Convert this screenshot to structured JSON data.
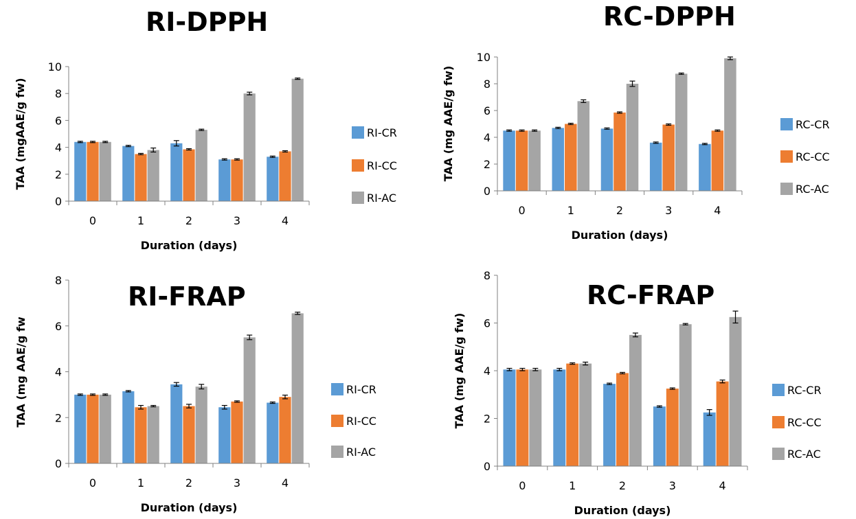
{
  "chart_data": [
    {
      "type": "bar",
      "title": "RI-DPPH",
      "xlabel": "Duration (days)",
      "ylabel": "TAA (mgAAE/g fw)",
      "ylim": [
        0,
        10
      ],
      "yticks": [
        "0",
        "2",
        "4",
        "6",
        "8",
        "10"
      ],
      "categories": [
        "0",
        "1",
        "2",
        "3",
        "4"
      ],
      "legend_position": "right",
      "grid": false,
      "series": [
        {
          "name": "RI-CR",
          "color": "#5b9bd5",
          "values": [
            4.4,
            4.1,
            4.3,
            3.1,
            3.3
          ],
          "errors": [
            0.05,
            0.05,
            0.2,
            0.05,
            0.05
          ]
        },
        {
          "name": "RI-CC",
          "color": "#ed7d31",
          "values": [
            4.4,
            3.5,
            3.85,
            3.1,
            3.7
          ],
          "errors": [
            0.05,
            0.05,
            0.05,
            0.05,
            0.05
          ]
        },
        {
          "name": "RI-AC",
          "color": "#a5a5a5",
          "values": [
            4.4,
            3.8,
            5.3,
            8.0,
            9.1
          ],
          "errors": [
            0.05,
            0.15,
            0.05,
            0.1,
            0.05
          ]
        }
      ]
    },
    {
      "type": "bar",
      "title": "RC-DPPH",
      "xlabel": "Duration (days)",
      "ylabel": "TAA (mg AAE/g fw)",
      "ylim": [
        0,
        10
      ],
      "yticks": [
        "0",
        "2",
        "4",
        "6",
        "8",
        "10"
      ],
      "categories": [
        "0",
        "1",
        "2",
        "3",
        "4"
      ],
      "legend_position": "right",
      "grid": false,
      "series": [
        {
          "name": "RC-CR",
          "color": "#5b9bd5",
          "values": [
            4.5,
            4.7,
            4.65,
            3.6,
            3.5
          ],
          "errors": [
            0.05,
            0.05,
            0.05,
            0.05,
            0.05
          ]
        },
        {
          "name": "RC-CC",
          "color": "#ed7d31",
          "values": [
            4.5,
            5.0,
            5.85,
            4.95,
            4.5
          ],
          "errors": [
            0.05,
            0.05,
            0.05,
            0.05,
            0.05
          ]
        },
        {
          "name": "RC-AC",
          "color": "#a5a5a5",
          "values": [
            4.5,
            6.7,
            8.0,
            8.75,
            9.9
          ],
          "errors": [
            0.05,
            0.1,
            0.2,
            0.05,
            0.1
          ]
        }
      ]
    },
    {
      "type": "bar",
      "title": "RI-FRAP",
      "xlabel": "Duration (days)",
      "ylabel": "TAA (mg AAE/g fw",
      "ylim": [
        0,
        8
      ],
      "yticks": [
        "0",
        "2",
        "4",
        "6",
        "8"
      ],
      "categories": [
        "0",
        "1",
        "2",
        "3",
        "4"
      ],
      "legend_position": "right",
      "grid": false,
      "series": [
        {
          "name": "RI-CR",
          "color": "#5b9bd5",
          "values": [
            3.0,
            3.15,
            3.45,
            2.45,
            2.65
          ],
          "errors": [
            0.03,
            0.03,
            0.08,
            0.08,
            0.03
          ]
        },
        {
          "name": "RI-CC",
          "color": "#ed7d31",
          "values": [
            3.0,
            2.45,
            2.5,
            2.7,
            2.9
          ],
          "errors": [
            0.03,
            0.08,
            0.08,
            0.03,
            0.08
          ]
        },
        {
          "name": "RI-AC",
          "color": "#a5a5a5",
          "values": [
            3.0,
            2.5,
            3.35,
            5.5,
            6.55
          ],
          "errors": [
            0.03,
            0.03,
            0.1,
            0.1,
            0.05
          ]
        }
      ]
    },
    {
      "type": "bar",
      "title": "RC-FRAP",
      "xlabel": "Duration (days)",
      "ylabel": "TAA (mg AAE/g fw)",
      "ylim": [
        0,
        8
      ],
      "yticks": [
        "0",
        "2",
        "4",
        "6",
        "8"
      ],
      "categories": [
        "0",
        "1",
        "2",
        "3",
        "4"
      ],
      "legend_position": "right",
      "grid": false,
      "series": [
        {
          "name": "RC-CR",
          "color": "#5b9bd5",
          "values": [
            4.05,
            4.05,
            3.45,
            2.5,
            2.25
          ],
          "errors": [
            0.05,
            0.05,
            0.03,
            0.03,
            0.12
          ]
        },
        {
          "name": "RC-CC",
          "color": "#ed7d31",
          "values": [
            4.05,
            4.3,
            3.9,
            3.25,
            3.55
          ],
          "errors": [
            0.05,
            0.03,
            0.03,
            0.03,
            0.06
          ]
        },
        {
          "name": "RC-AC",
          "color": "#a5a5a5",
          "values": [
            4.05,
            4.3,
            5.5,
            5.95,
            6.25
          ],
          "errors": [
            0.05,
            0.06,
            0.08,
            0.03,
            0.25
          ]
        }
      ]
    }
  ]
}
